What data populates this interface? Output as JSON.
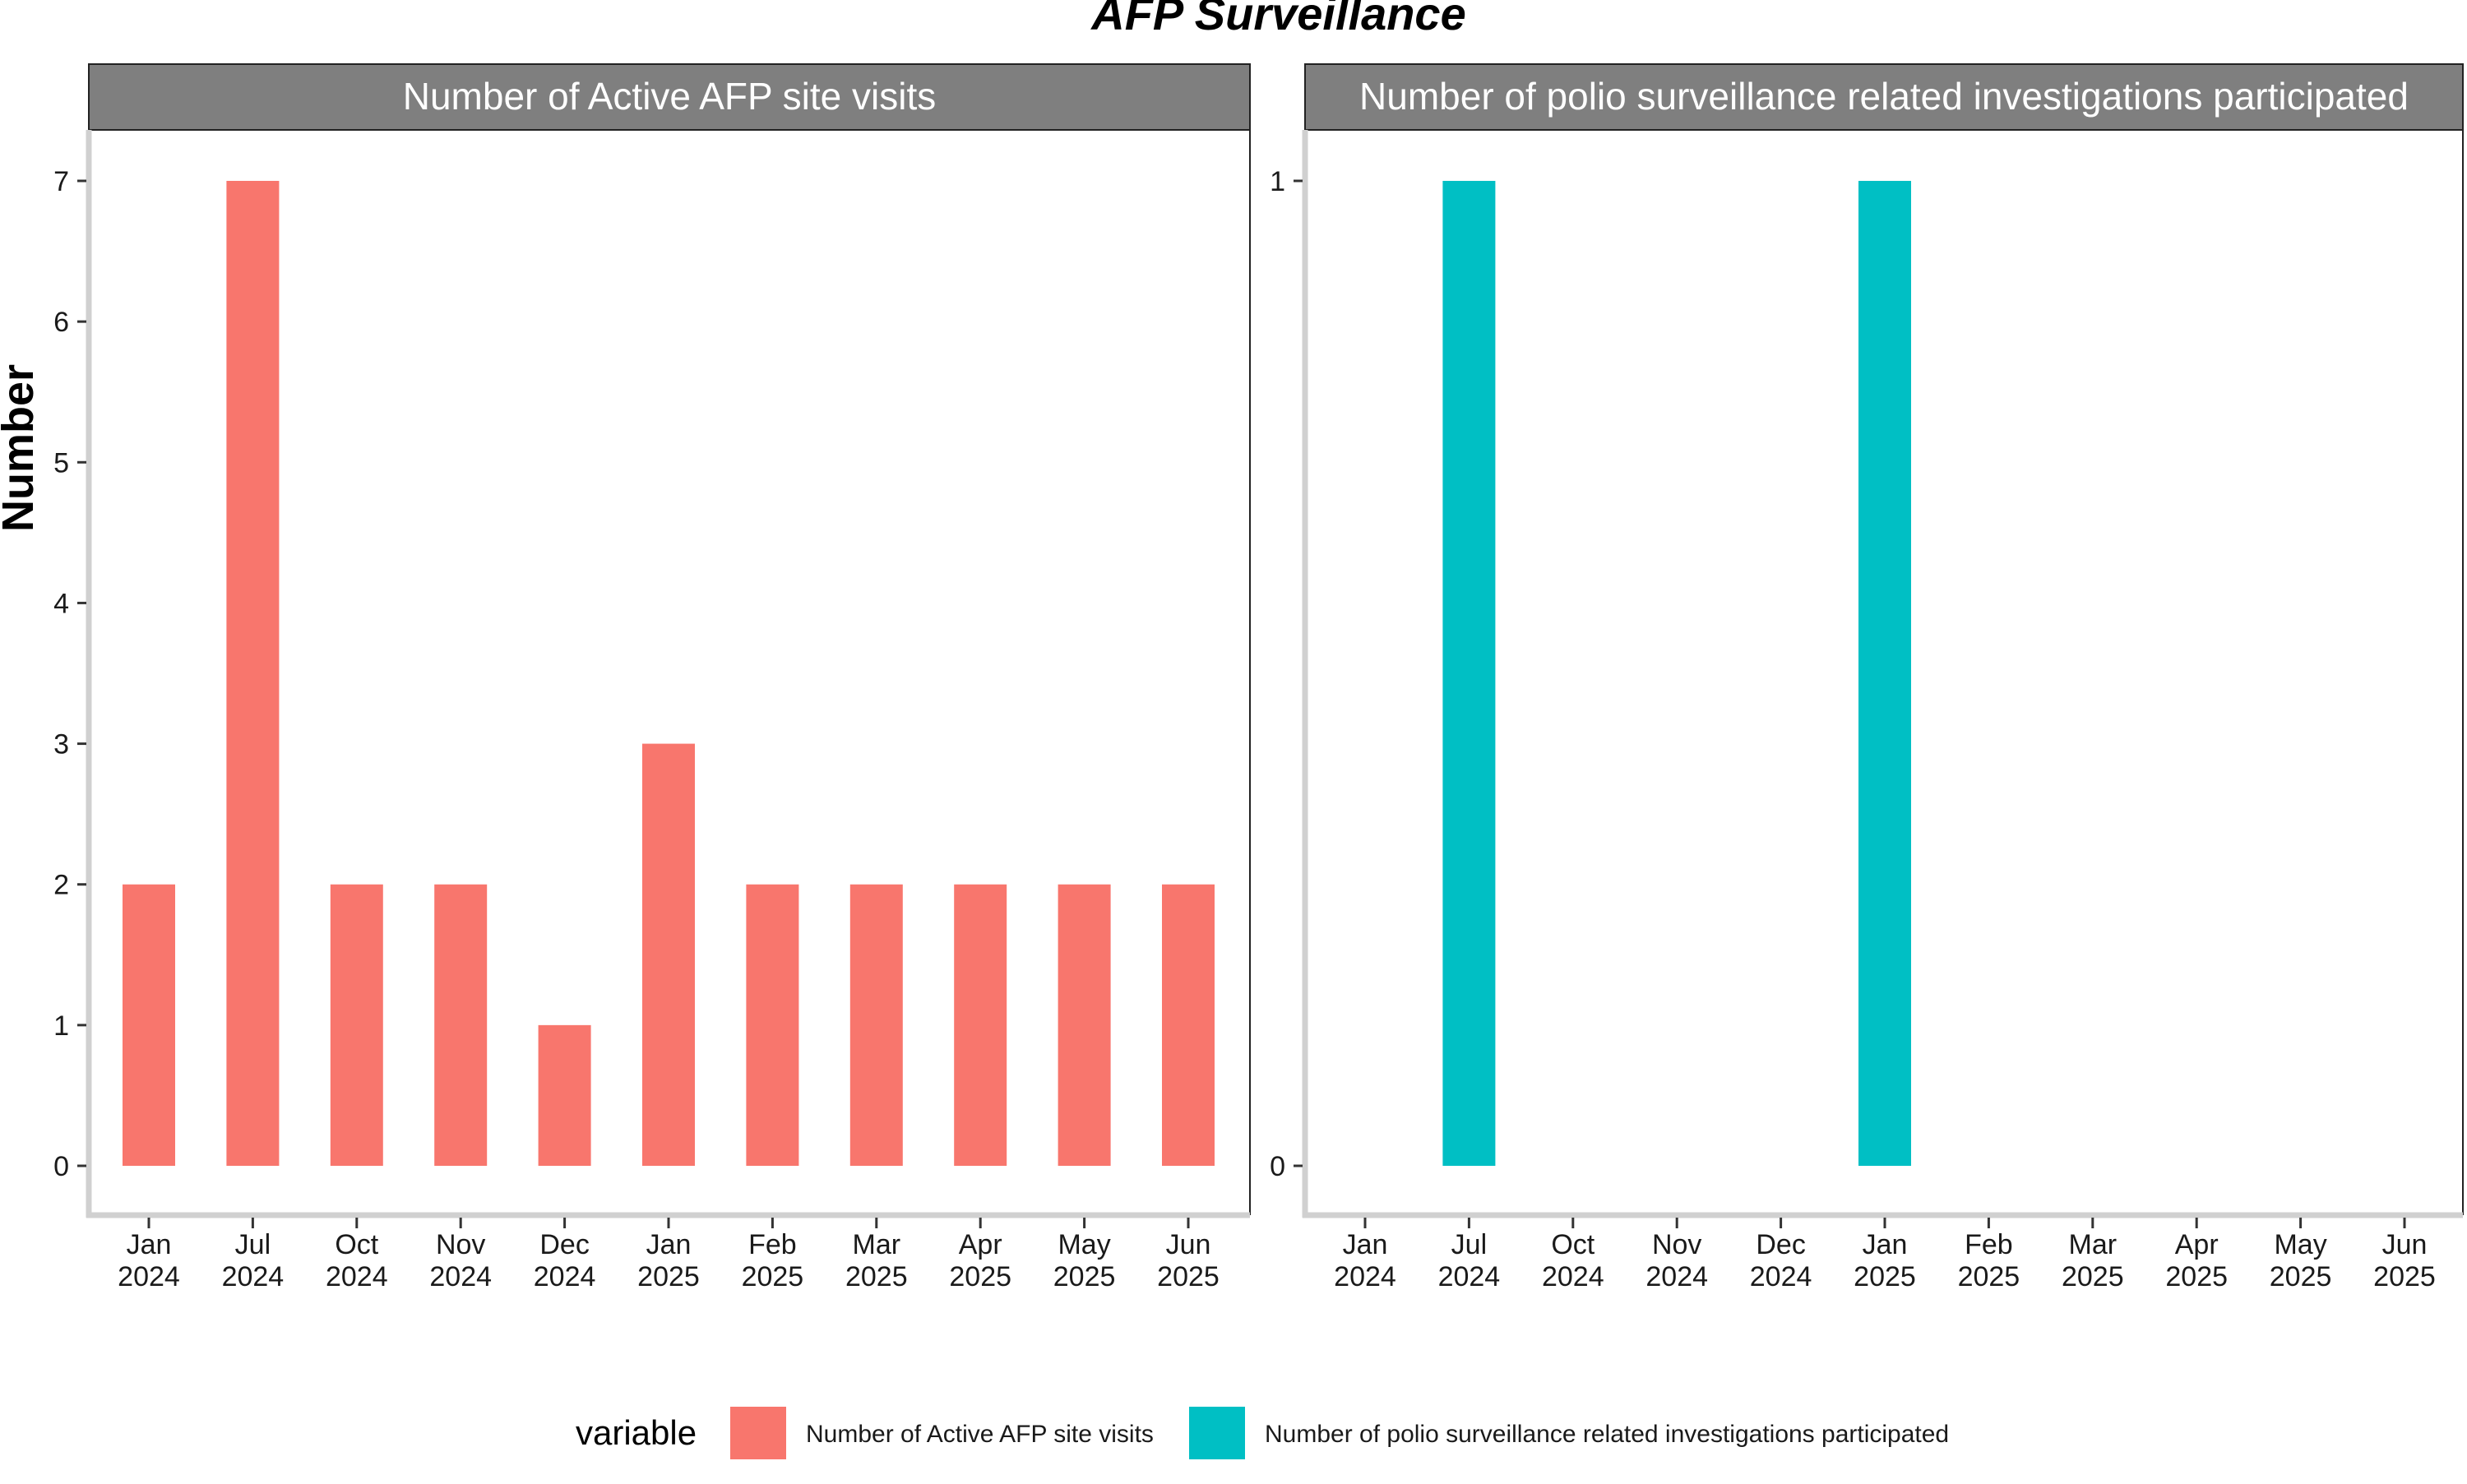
{
  "chart_data": {
    "type": "bar",
    "title": "AFP Surveillance",
    "ylabel": "Number",
    "xlabel": "",
    "categories": [
      [
        "Jan",
        "2024"
      ],
      [
        "Jul",
        "2024"
      ],
      [
        "Oct",
        "2024"
      ],
      [
        "Nov",
        "2024"
      ],
      [
        "Dec",
        "2024"
      ],
      [
        "Jan",
        "2025"
      ],
      [
        "Feb",
        "2025"
      ],
      [
        "Mar",
        "2025"
      ],
      [
        "Apr",
        "2025"
      ],
      [
        "May",
        "2025"
      ],
      [
        "Jun",
        "2025"
      ]
    ],
    "facets": [
      {
        "strip_label": "Number of Active AFP site visits",
        "series_name": "Number of Active AFP site visits",
        "color": "#F8766D",
        "values": [
          2,
          7,
          2,
          2,
          1,
          3,
          2,
          2,
          2,
          2,
          2
        ],
        "ylim": [
          0,
          7
        ],
        "yticks": [
          0,
          1,
          2,
          3,
          4,
          5,
          6,
          7
        ]
      },
      {
        "strip_label": "Number of polio surveillance related investigations participated",
        "series_name": "Number of polio surveillance related investigations participated",
        "color": "#00BFC4",
        "values": [
          0,
          1,
          0,
          0,
          0,
          1,
          0,
          0,
          0,
          0,
          0
        ],
        "ylim": [
          0,
          1
        ],
        "yticks": [
          0,
          1
        ]
      }
    ],
    "legend": {
      "title": "variable",
      "placement": "bottom",
      "entries": [
        {
          "label": "Number of Active AFP site visits",
          "color": "#F8766D"
        },
        {
          "label": "Number of polio surveillance related investigations participated",
          "color": "#00BFC4"
        }
      ]
    },
    "strip_color": "#7F7F7F",
    "strip_text_color": "#FFFFFF",
    "axis_color": "#D0D0D0",
    "grid": false
  }
}
